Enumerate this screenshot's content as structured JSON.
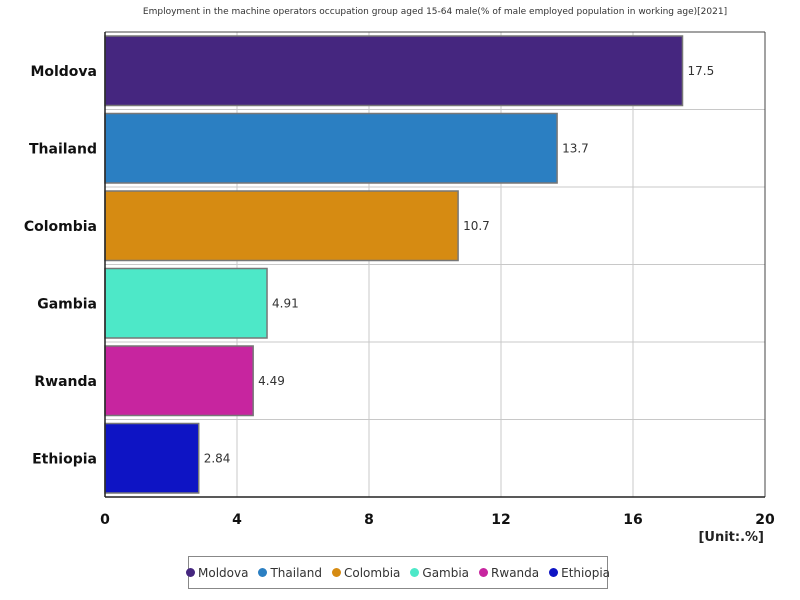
{
  "chart_data": {
    "type": "bar",
    "orientation": "horizontal",
    "title": "Employment in the machine operators occupation group aged 15-64 male(% of male employed population in working age)[2021]",
    "unit_label": "[Unit:.%]",
    "categories": [
      "Moldova",
      "Thailand",
      "Colombia",
      "Gambia",
      "Rwanda",
      "Ethiopia"
    ],
    "values": [
      17.5,
      13.7,
      10.7,
      4.91,
      4.49,
      2.84
    ],
    "value_labels": [
      "17.5",
      "13.7",
      "10.7",
      "4.91",
      "4.49",
      "2.84"
    ],
    "colors": [
      "#45267f",
      "#2b7fc2",
      "#d68b12",
      "#4de8c8",
      "#c7259f",
      "#0e14c4"
    ],
    "xlim": [
      0,
      20
    ],
    "xticks": [
      0,
      4,
      8,
      12,
      16,
      20
    ],
    "grid": true,
    "legend_position": "bottom"
  }
}
